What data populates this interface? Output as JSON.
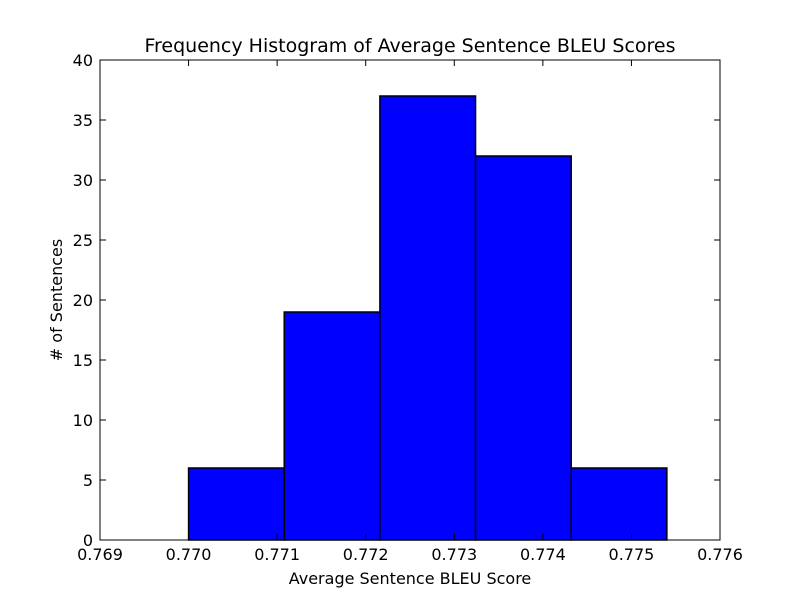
{
  "chart_data": {
    "type": "bar",
    "title": "Frequency Histogram of Average Sentence BLEU Scores",
    "xlabel": "Average Sentence BLEU Score",
    "ylabel": "# of Sentences",
    "xlim": [
      0.769,
      0.776
    ],
    "ylim": [
      0,
      40
    ],
    "xticks": [
      "0.769",
      "0.770",
      "0.771",
      "0.772",
      "0.773",
      "0.774",
      "0.775",
      "0.776"
    ],
    "yticks": [
      "0",
      "5",
      "10",
      "15",
      "20",
      "25",
      "30",
      "35",
      "40"
    ],
    "bins": [
      {
        "start": 0.77,
        "end": 0.77108,
        "count": 6
      },
      {
        "start": 0.77108,
        "end": 0.77216,
        "count": 19
      },
      {
        "start": 0.77216,
        "end": 0.77324,
        "count": 37
      },
      {
        "start": 0.77324,
        "end": 0.77432,
        "count": 32
      },
      {
        "start": 0.77432,
        "end": 0.7754,
        "count": 6
      }
    ],
    "colors": {
      "bar_fill": "#0000ff",
      "bar_edge": "#000000",
      "axes": "#000000",
      "background": "#ffffff"
    },
    "grid": false,
    "legend": "none"
  }
}
